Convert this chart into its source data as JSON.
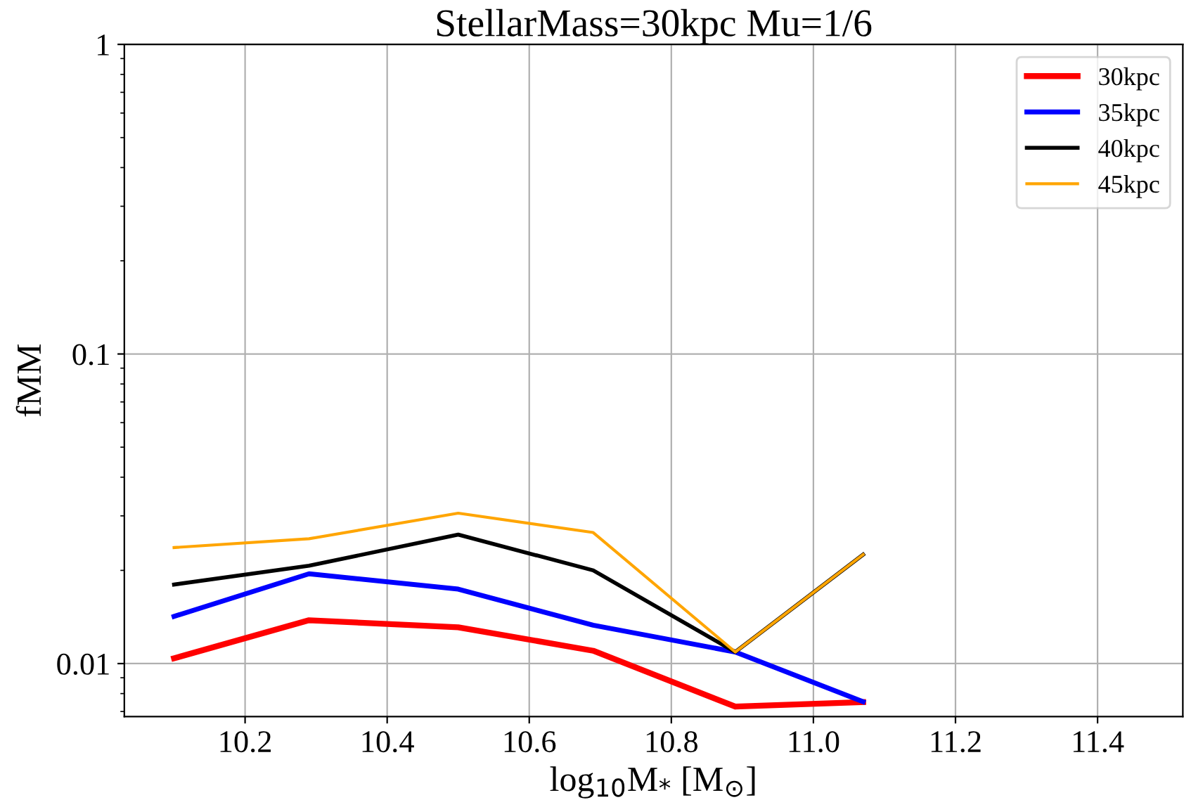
{
  "chart_data": {
    "type": "line",
    "title": "StellarMass=30kpc Mu=1/6",
    "xlabel": "log$_{10}$M$_{*}$ [M$_{⊙}$]",
    "ylabel": "fMM",
    "x": [
      10.1,
      10.29,
      10.5,
      10.69,
      10.89,
      11.07
    ],
    "series": [
      {
        "name": "30kpc",
        "color": "#ff0000",
        "values": [
          0.0104,
          0.0138,
          0.0131,
          0.011,
          0.00726,
          0.00751
        ]
      },
      {
        "name": "35kpc",
        "color": "#0000ff",
        "values": [
          0.0142,
          0.0195,
          0.0174,
          0.0133,
          0.0109,
          0.00753
        ]
      },
      {
        "name": "40kpc",
        "color": "#000000",
        "values": [
          0.018,
          0.0207,
          0.0261,
          0.02,
          0.0109,
          0.0225
        ]
      },
      {
        "name": "45kpc",
        "color": "#ffa500",
        "values": [
          0.0237,
          0.0253,
          0.0306,
          0.0265,
          0.0109,
          0.0225
        ]
      }
    ],
    "log": "y",
    "xlim": [
      10.03,
      11.52
    ],
    "ylim": [
      0.00674,
      1
    ],
    "xticks": [
      10.2,
      10.4,
      10.6,
      10.8,
      {
        "value": 11,
        "label": "11.0"
      },
      11.2,
      11.4
    ],
    "yticks": [
      {
        "value": 1,
        "label": "1"
      },
      {
        "value": 0.1,
        "label": "0.1"
      },
      {
        "value": 0.01,
        "label": "0.01"
      }
    ],
    "grid": true,
    "legend": "top right",
    "marker": "none",
    "line_style": "solid"
  }
}
